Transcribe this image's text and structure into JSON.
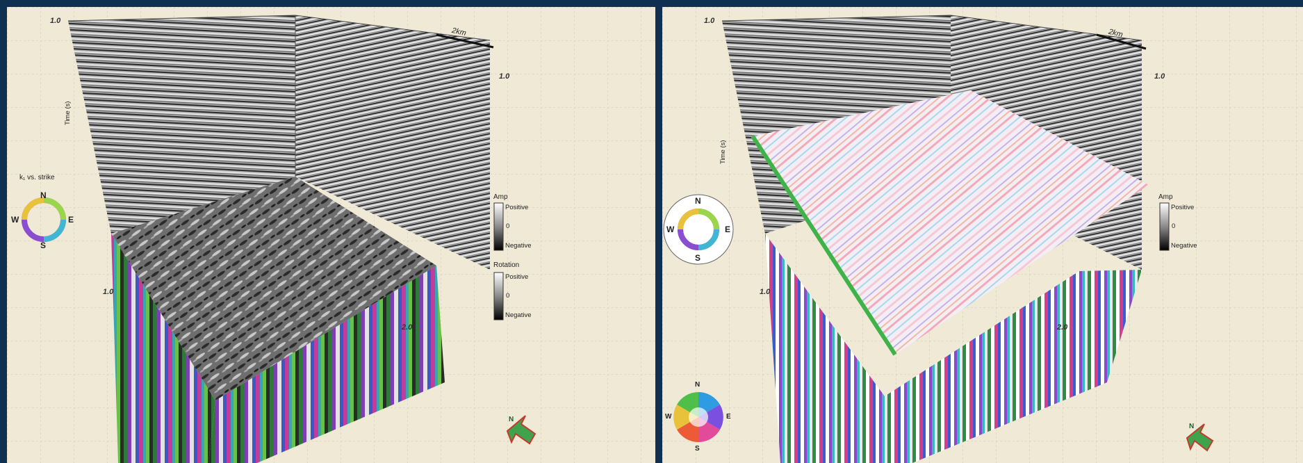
{
  "left_panel": {
    "tick_top_left": "1.0",
    "tick_right_top": "1.0",
    "tick_mid_left": "1.0",
    "tick_bottom_right": "2.0",
    "axis_time": "Time (s)",
    "scale_bar": "2km",
    "compass_title": "k₁ vs. strike",
    "compass": {
      "n": "N",
      "s": "S",
      "e": "E",
      "w": "W"
    },
    "amp_legend": {
      "title": "Amp",
      "positive": "Positive",
      "zero": "0",
      "negative": "Negative"
    },
    "rotation_legend": {
      "title": "Rotation",
      "positive": "Positive",
      "zero": "0",
      "negative": "Negative"
    },
    "north_arrow": "N"
  },
  "right_panel": {
    "tick_top_left": "1.0",
    "tick_right_top": "1.0",
    "tick_mid_left": "1.0",
    "tick_bottom_right": "2.0",
    "axis_time": "Time (s)",
    "scale_bar": "2km",
    "compass": {
      "n": "N",
      "s": "S",
      "e": "E",
      "w": "W"
    },
    "wheel": {
      "n": "N",
      "s": "S",
      "e": "E",
      "w": "W"
    },
    "amp_legend": {
      "title": "Amp",
      "positive": "Positive",
      "zero": "0",
      "negative": "Negative"
    },
    "north_arrow": "N"
  },
  "colors": {
    "frame": "#0f3050",
    "panel_bg": "#efe9d6",
    "grid": "#c9c2ad",
    "north_arrow": "#3fa34d"
  }
}
